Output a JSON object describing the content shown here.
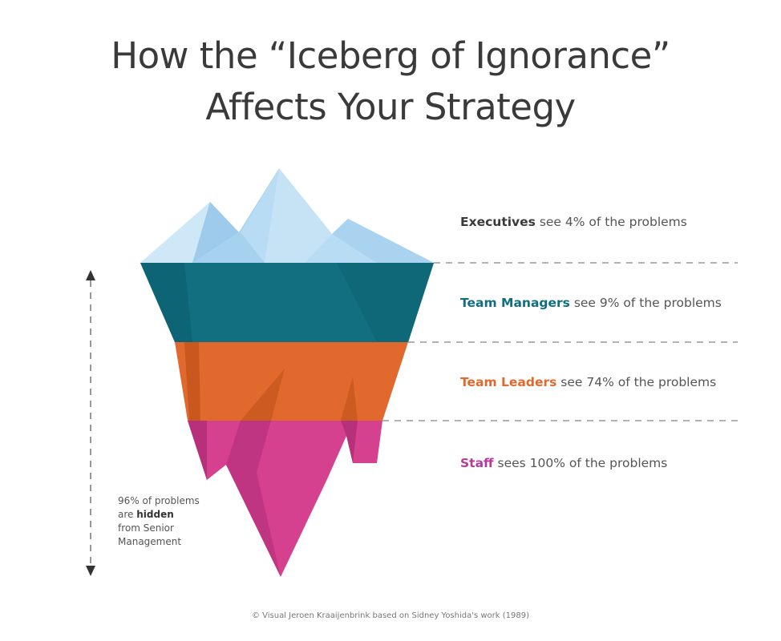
{
  "title": {
    "line1": "How the “Iceberg of Ignorance”",
    "line2": "Affects Your Strategy"
  },
  "layers": [
    {
      "role": "Executives",
      "text": " see 4% of the problems",
      "color": "#3a3a3a"
    },
    {
      "role": "Team Managers",
      "text": " see 9% of the problems",
      "color": "#0f6e80"
    },
    {
      "role": "Team Leaders",
      "text": " see 74% of the problems",
      "color": "#e0692d"
    },
    {
      "role": "Staff",
      "text": " sees 100% of the problems",
      "color": "#b53a9c"
    }
  ],
  "hidden_note": {
    "line1": "96% of problems",
    "line2_prefix": "are ",
    "line2_bold": "hidden",
    "line3": "from Senior",
    "line4": "Management"
  },
  "credit": "© Visual Jeroen Kraaijenbrink based on Sidney Yoshida's work (1989)",
  "colors": {
    "ice_tip": "#b8dcf3",
    "teal": "#116f7f",
    "orange": "#e2692d",
    "magenta": "#d6418f"
  }
}
